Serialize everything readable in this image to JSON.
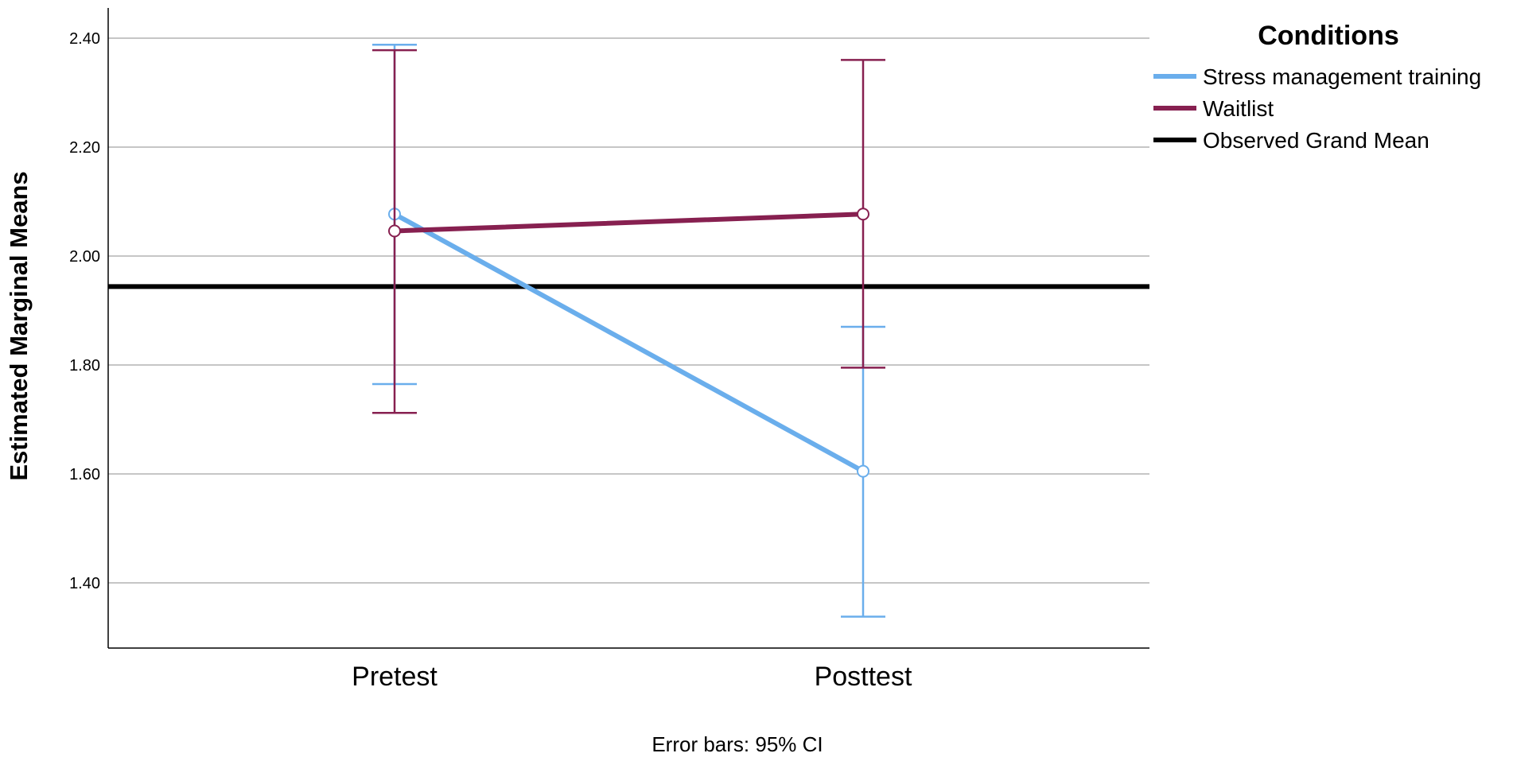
{
  "chart_data": {
    "type": "line",
    "categories": [
      "Pretest",
      "Posttest"
    ],
    "ylabel": "Estimated Marginal Means",
    "ylim": [
      1.28,
      2.46
    ],
    "yticks": [
      "1.40",
      "1.60",
      "1.80",
      "2.00",
      "2.20",
      "2.40"
    ],
    "grid": true,
    "legend_title": "Conditions",
    "legend_position": "top-right",
    "note": "Error bars: 95% CI",
    "series": [
      {
        "name": "Stress management training",
        "color": "#6AAEEC",
        "values": [
          2.077,
          1.605
        ],
        "ci_lower": [
          1.765,
          1.338
        ],
        "ci_upper": [
          2.388,
          1.87
        ]
      },
      {
        "name": "Waitlist",
        "color": "#872050",
        "values": [
          2.046,
          2.077
        ],
        "ci_lower": [
          1.712,
          1.795
        ],
        "ci_upper": [
          2.378,
          2.36
        ]
      }
    ],
    "reference_line": {
      "name": "Observed Grand Mean",
      "value": 1.944,
      "color": "#000000"
    }
  }
}
